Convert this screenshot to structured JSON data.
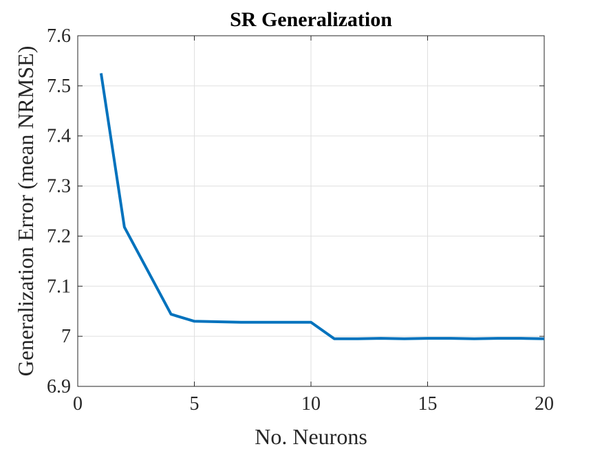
{
  "chart_data": {
    "type": "line",
    "title": "SR Generalization",
    "xlabel": "No. Neurons",
    "ylabel": "Generalization Error (mean NRMSE)",
    "xlim": [
      0,
      20
    ],
    "ylim": [
      6.9,
      7.6
    ],
    "x_ticks": [
      0,
      5,
      10,
      15,
      20
    ],
    "x_tick_labels": [
      "0",
      "5",
      "10",
      "15",
      "20"
    ],
    "y_ticks": [
      6.9,
      7.0,
      7.1,
      7.2,
      7.3,
      7.4,
      7.5,
      7.6
    ],
    "y_tick_labels": [
      "6.9",
      "7",
      "7.1",
      "7.2",
      "7.3",
      "7.4",
      "7.5",
      "7.6"
    ],
    "grid": true,
    "series": [
      {
        "color": "#0072bd",
        "x": [
          1,
          2,
          3,
          4,
          5,
          6,
          7,
          8,
          9,
          10,
          11,
          12,
          13,
          14,
          15,
          16,
          17,
          18,
          19,
          20
        ],
        "y": [
          7.525,
          7.218,
          7.131,
          7.044,
          7.03,
          7.029,
          7.028,
          7.028,
          7.028,
          7.028,
          6.995,
          6.995,
          6.996,
          6.995,
          6.996,
          6.996,
          6.995,
          6.996,
          6.996,
          6.995
        ]
      }
    ]
  }
}
